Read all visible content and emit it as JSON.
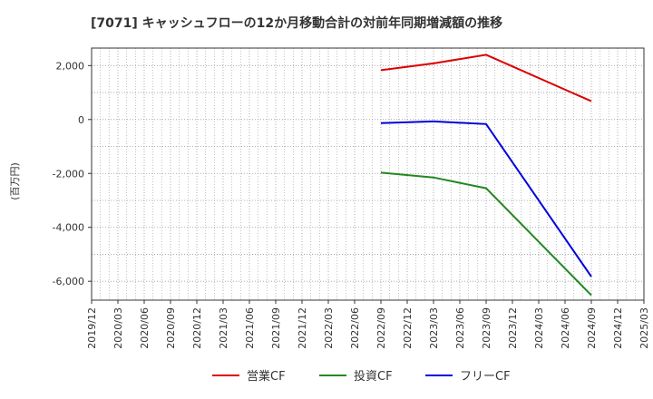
{
  "chart_data": {
    "type": "line",
    "title": "[7071]  キャッシュフローの12か月移動合計の対前年同期増減額の推移",
    "ylabel": "(百万円)",
    "xlabel": "",
    "ylim": [
      -6700,
      2650
    ],
    "yticks": [
      2000,
      0,
      -2000,
      -4000,
      -6000
    ],
    "ytick_labels": [
      "2,000",
      "0",
      "-2,000",
      "-4,000",
      "-6,000"
    ],
    "x_categories": [
      "2019/12",
      "2020/03",
      "2020/06",
      "2020/09",
      "2020/12",
      "2021/03",
      "2021/06",
      "2021/09",
      "2021/12",
      "2022/03",
      "2022/06",
      "2022/09",
      "2022/12",
      "2023/03",
      "2023/06",
      "2023/09",
      "2023/12",
      "2024/03",
      "2024/06",
      "2024/09",
      "2024/12",
      "2025/03"
    ],
    "grid": true,
    "legend_position": "bottom",
    "series": [
      {
        "name": "営業CF",
        "color": "#dd0000",
        "points": [
          {
            "x": "2022/09",
            "y": 1830
          },
          {
            "x": "2023/03",
            "y": 2080
          },
          {
            "x": "2023/09",
            "y": 2400
          },
          {
            "x": "2024/09",
            "y": 680
          }
        ]
      },
      {
        "name": "投資CF",
        "color": "#228822",
        "points": [
          {
            "x": "2022/09",
            "y": -1970
          },
          {
            "x": "2023/03",
            "y": -2150
          },
          {
            "x": "2023/09",
            "y": -2550
          },
          {
            "x": "2024/09",
            "y": -6520
          }
        ]
      },
      {
        "name": "フリーCF",
        "color": "#0000dd",
        "points": [
          {
            "x": "2022/09",
            "y": -130
          },
          {
            "x": "2023/03",
            "y": -70
          },
          {
            "x": "2023/09",
            "y": -170
          },
          {
            "x": "2024/09",
            "y": -5830
          }
        ]
      }
    ]
  }
}
